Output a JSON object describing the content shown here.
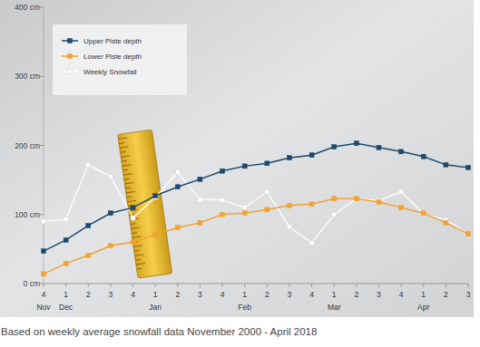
{
  "chart_data": {
    "type": "line",
    "categories": [
      "4",
      "1",
      "2",
      "3",
      "4",
      "1",
      "2",
      "3",
      "4",
      "1",
      "2",
      "3",
      "4",
      "1",
      "2",
      "3",
      "4",
      "1",
      "2",
      "3"
    ],
    "months": [
      {
        "label": "Nov",
        "index": 0
      },
      {
        "label": "Dec",
        "index": 1
      },
      {
        "label": "Jan",
        "index": 5
      },
      {
        "label": "Feb",
        "index": 9
      },
      {
        "label": "Mar",
        "index": 13
      },
      {
        "label": "Apr",
        "index": 17
      }
    ],
    "series": [
      {
        "name": "Upper Piste depth",
        "color": "#1c4a6e",
        "marker": "square",
        "values": [
          47,
          63,
          84,
          102,
          110,
          127,
          140,
          151,
          163,
          170,
          174,
          182,
          186,
          198,
          203,
          197,
          191,
          184,
          172,
          168
        ]
      },
      {
        "name": "Lower Piste depth",
        "color": "#f2a230",
        "marker": "square",
        "values": [
          14,
          29,
          41,
          55,
          60,
          71,
          81,
          88,
          100,
          102,
          107,
          113,
          115,
          123,
          123,
          118,
          110,
          102,
          88,
          72
        ]
      },
      {
        "name": "Weekly Snowfall",
        "color": "#ffffff",
        "marker": "square",
        "values": [
          90,
          93,
          172,
          155,
          95,
          125,
          161,
          122,
          121,
          110,
          133,
          82,
          59,
          100,
          123,
          120,
          133,
          101,
          92,
          72
        ]
      }
    ],
    "ylim": [
      0,
      400
    ],
    "yticks": [
      {
        "value": 0,
        "label": "0 cm"
      },
      {
        "value": 100,
        "label": "100 cm"
      },
      {
        "value": 200,
        "label": "200 cm"
      },
      {
        "value": 300,
        "label": "300 cm"
      },
      {
        "value": 400,
        "label": "400 cm"
      }
    ],
    "grid": false,
    "legend": "top-left",
    "footnote": "Based on weekly average snowfall data November 2000 - April 2018"
  }
}
